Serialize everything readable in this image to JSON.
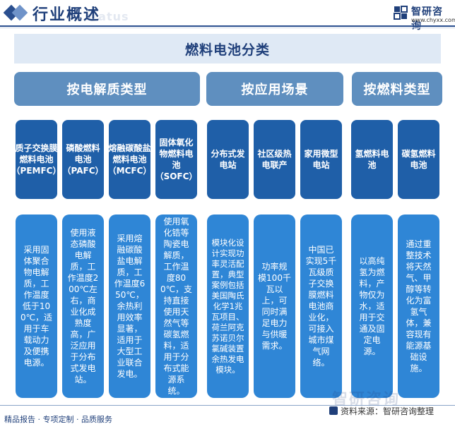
{
  "header": {
    "title": "行业概述",
    "ghost_text": "status",
    "brand_name": "智研咨询",
    "brand_url": "www.chyxx.com"
  },
  "main_title": "燃料电池分类",
  "categories": [
    {
      "label": "按电解质类型"
    },
    {
      "label": "按应用场景"
    },
    {
      "label": "按燃料类型"
    }
  ],
  "columns": [
    {
      "title": "质子交换膜燃料电池（PEMFC）",
      "desc": "采用固体聚合物电解质，工作温度低于100℃，适用于车载动力及便携电源。"
    },
    {
      "title": "磷酸燃料电池（PAFC）",
      "desc": "使用液态磷酸电解质，工作温度200℃左右，商业化成熟度高，广泛应用于分布式发电站。"
    },
    {
      "title": "熔融碳酸盐燃料电池（MCFC）",
      "desc": "采用熔融碳酸盐电解质，工作温度650℃，余热利用效率显著，适用于大型工业联合发电。"
    },
    {
      "title": "固体氧化物燃料电池（SOFC）",
      "desc": "使用氧化锆等陶瓷电解质，工作温度800℃，支持直接使用天然气等碳氢燃料，适用于分布式能源系统。"
    },
    {
      "title": "分布式发电站",
      "desc": "模块化设计实现功率灵活配置，典型案例包括美国陶氏化学1兆瓦项目、荷兰阿克苏诺贝尔氯碱装置余热发电模块。"
    },
    {
      "title": "社区级热电联产",
      "desc": "功率规模100千瓦以上，可同时满足电力与供暖需求。"
    },
    {
      "title": "家用微型电站",
      "desc": "中国已实现5千瓦级质子交换膜燃料电池商业化，可接入城市煤气网络。"
    },
    {
      "title": "氢燃料电池",
      "desc": "以高纯氢为燃料，产物仅为水，适用于交通及固定电源。"
    },
    {
      "title": "碳氢燃料电池",
      "desc": "通过重整技术将天然气、甲醇等转化为富氢气体，兼容现有能源基础设施。"
    }
  ],
  "footer": {
    "left": "精品报告 · 专项定制 · 品质服务",
    "right": "资料来源：智研咨询整理",
    "watermark": "智研咨询"
  },
  "colors": {
    "category": "#5f8fbf",
    "column_head": "#1f5fa8",
    "column_body": "#2f86d6",
    "title_band": "#dfe9f5",
    "brand": "#1f3f7a"
  }
}
